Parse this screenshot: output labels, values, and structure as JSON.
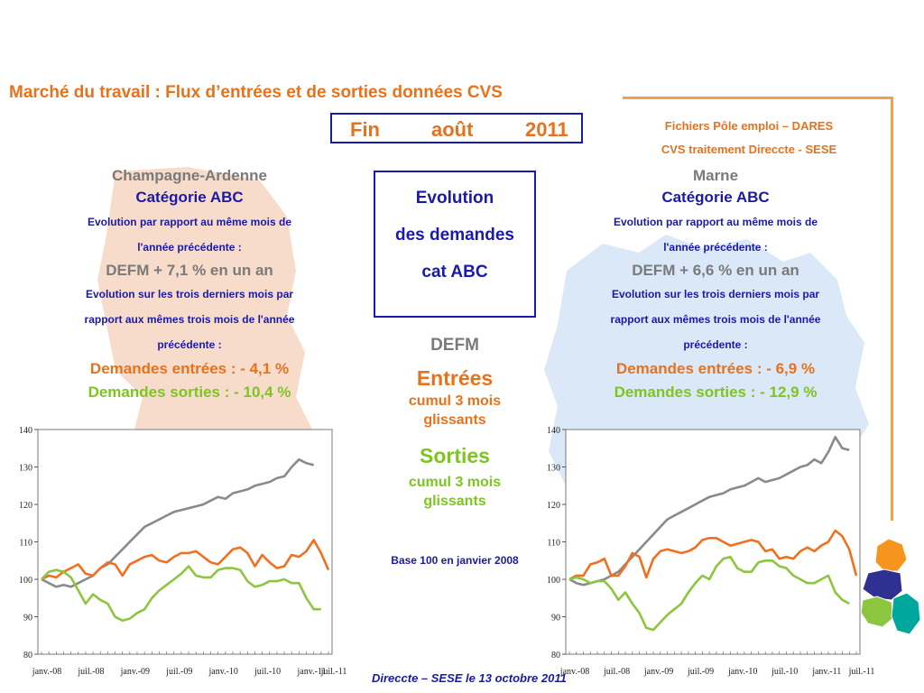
{
  "title": "Marché du travail : Flux d’entrées et de sorties données CVS",
  "date": {
    "word1": "Fin",
    "word2": "août",
    "word3": "2011"
  },
  "source": {
    "line1": "Fichiers Pôle emploi – DARES",
    "line2": "CVS traitement Direccte - SESE"
  },
  "left": {
    "region": "Champagne-Ardenne",
    "category": "Catégorie ABC",
    "evo_year_1": "Evolution par rapport au même mois de",
    "evo_year_2": "l'année précédente :",
    "defm_line": "DEFM +  7,1 % en un an",
    "evo3_1": "Evolution sur les trois derniers mois par",
    "evo3_2": "rapport aux mêmes trois mois de l'année",
    "evo3_3": "précédente :",
    "entrees": "Demandes entrées : -  4,1 %",
    "sorties": "Demandes sorties : -  10,4 %"
  },
  "right": {
    "region": "Marne",
    "category": "Catégorie ABC",
    "evo_year_1": "Evolution par rapport au même mois de",
    "evo_year_2": "l'année précédente :",
    "defm_line": "DEFM +  6,6 % en un an",
    "evo3_1": "Evolution sur les trois derniers mois par",
    "evo3_2": "rapport aux mêmes trois mois de l'année",
    "evo3_3": "précédente :",
    "entrees": "Demandes entrées : -  6,9 %",
    "sorties": "Demandes sorties : -  12,9 %"
  },
  "center": {
    "evo_line1": "Evolution",
    "evo_line2": "des  demandes",
    "evo_line3": "cat ABC",
    "defm": "DEFM",
    "entrees": "Entrées",
    "entrees_sub1": "cumul 3 mois",
    "entrees_sub2": "glissants",
    "sorties": "Sorties",
    "sorties_sub1": "cumul 3 mois",
    "sorties_sub2": "glissants",
    "base": "Base 100 en janvier 2008"
  },
  "footer": "Direccte – SESE le 13 octobre 2011",
  "colors": {
    "defm": "#8a8a8a",
    "entrees": "#f07020",
    "sorties": "#8cc63f",
    "accent": "#e8721c",
    "blue": "#1a1aa8"
  },
  "chart_data": [
    {
      "type": "line",
      "region": "Champagne-Ardenne",
      "xticklabels": [
        "janv.-08",
        "juil.-08",
        "janv.-09",
        "juil.-09",
        "janv.-10",
        "juil.-10",
        "janv.-11",
        "juil.-11"
      ],
      "ylim": [
        80,
        140
      ],
      "yticks": [
        80,
        90,
        100,
        110,
        120,
        130,
        140
      ],
      "series": [
        {
          "key": "defm",
          "values": [
            100,
            99,
            98,
            98.5,
            98,
            99,
            100,
            101,
            103,
            104,
            106,
            108,
            110,
            112,
            114,
            115,
            116,
            117,
            118,
            118.5,
            119,
            119.5,
            120,
            121,
            122,
            121.5,
            123,
            123.5,
            124,
            125,
            125.5,
            126,
            127,
            127.5,
            130,
            132,
            131,
            130.5
          ]
        },
        {
          "key": "entrees",
          "values": [
            100,
            101,
            100.5,
            102,
            103,
            104,
            101.5,
            101,
            103,
            104.5,
            104,
            101,
            104,
            105,
            106,
            106.5,
            105,
            104.5,
            106,
            107,
            107,
            107.5,
            106,
            104.5,
            104,
            106,
            108,
            108.5,
            107,
            103.5,
            106.5,
            104.5,
            103,
            103.5,
            106.5,
            106,
            107.5,
            110.5,
            107,
            102.5
          ]
        },
        {
          "key": "sorties",
          "values": [
            100,
            102,
            102.5,
            102,
            100.5,
            97,
            93.5,
            96,
            94.5,
            93.5,
            90,
            89,
            89.5,
            91,
            92,
            95,
            97,
            98.5,
            100,
            101.5,
            103.5,
            101,
            100.5,
            100.5,
            102.5,
            103,
            103,
            102.5,
            99.5,
            98,
            98.5,
            99.5,
            99.5,
            100,
            99,
            99,
            95,
            92,
            92
          ]
        }
      ]
    },
    {
      "type": "line",
      "region": "Marne",
      "xticklabels": [
        "janv.-08",
        "juil.-08",
        "janv.-09",
        "juil.-09",
        "janv.-10",
        "juil.-10",
        "janv.-11",
        "juil.-11"
      ],
      "ylim": [
        80,
        140
      ],
      "yticks": [
        80,
        90,
        100,
        110,
        120,
        130,
        140
      ],
      "series": [
        {
          "key": "defm",
          "values": [
            100,
            99,
            98.5,
            99,
            99.5,
            100,
            101,
            102,
            104,
            106,
            108,
            110,
            112,
            114,
            116,
            117,
            118,
            119,
            120,
            121,
            122,
            122.5,
            123,
            124,
            124.5,
            125,
            126,
            127,
            126,
            126.5,
            127,
            128,
            129,
            130,
            130.5,
            132,
            131,
            134,
            138,
            135,
            134.5
          ]
        },
        {
          "key": "entrees",
          "values": [
            100,
            101,
            101,
            104,
            104.5,
            105.5,
            101,
            101,
            103.5,
            107,
            106,
            100.5,
            105.5,
            107.5,
            108,
            107.5,
            107,
            107.5,
            108.5,
            110.5,
            111,
            111,
            110,
            109,
            109.5,
            110,
            110.5,
            110,
            107.5,
            108,
            105.5,
            106,
            105.5,
            107.5,
            108.5,
            107.5,
            109,
            110,
            113,
            111.5,
            108,
            101
          ]
        },
        {
          "key": "sorties",
          "values": [
            100,
            100.5,
            100,
            99,
            99.5,
            99.5,
            97.5,
            94.5,
            96.5,
            93.5,
            91,
            87,
            86.5,
            88.5,
            90.5,
            92,
            93.5,
            96.5,
            99,
            101,
            100,
            103.5,
            105.5,
            106,
            103,
            102,
            102,
            104.5,
            105,
            105,
            103.5,
            103,
            101,
            100,
            99,
            99,
            100,
            101,
            96.5,
            94.5,
            93.5
          ]
        }
      ]
    }
  ]
}
